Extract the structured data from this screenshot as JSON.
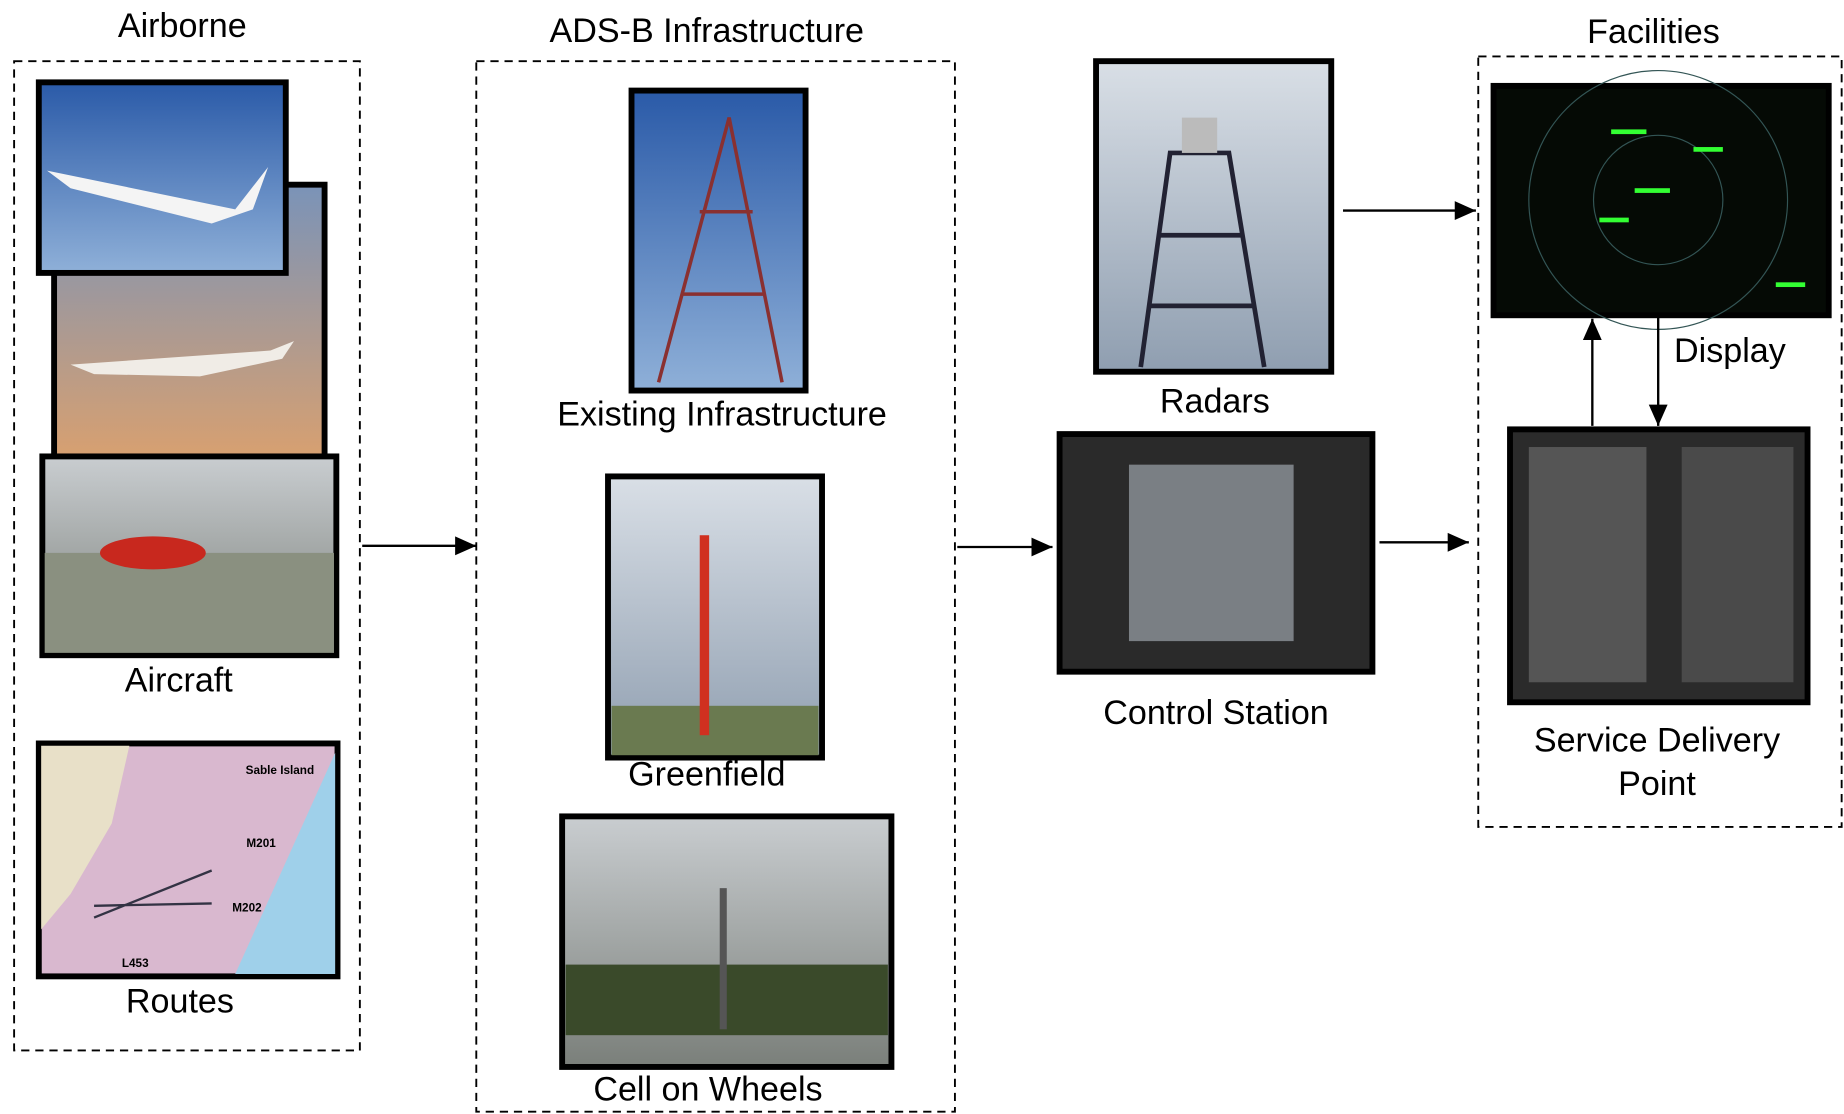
{
  "groups": [
    {
      "title": "Airborne"
    },
    {
      "title": "ADS-B Infrastructure"
    },
    {
      "title": "Facilities"
    }
  ],
  "nodes": [
    {
      "label": "Aircraft"
    },
    {
      "label": "Routes"
    },
    {
      "label": "Existing Infrastructure"
    },
    {
      "label": "Greenfield"
    },
    {
      "label": "Cell on Wheels"
    },
    {
      "label": "Radars"
    },
    {
      "label": "Control Station"
    },
    {
      "label": "Display"
    },
    {
      "label": [
        "Service Delivery",
        "Point"
      ]
    }
  ],
  "map_labels": [
    "Sable Island",
    "M201",
    "M202",
    "L453"
  ]
}
